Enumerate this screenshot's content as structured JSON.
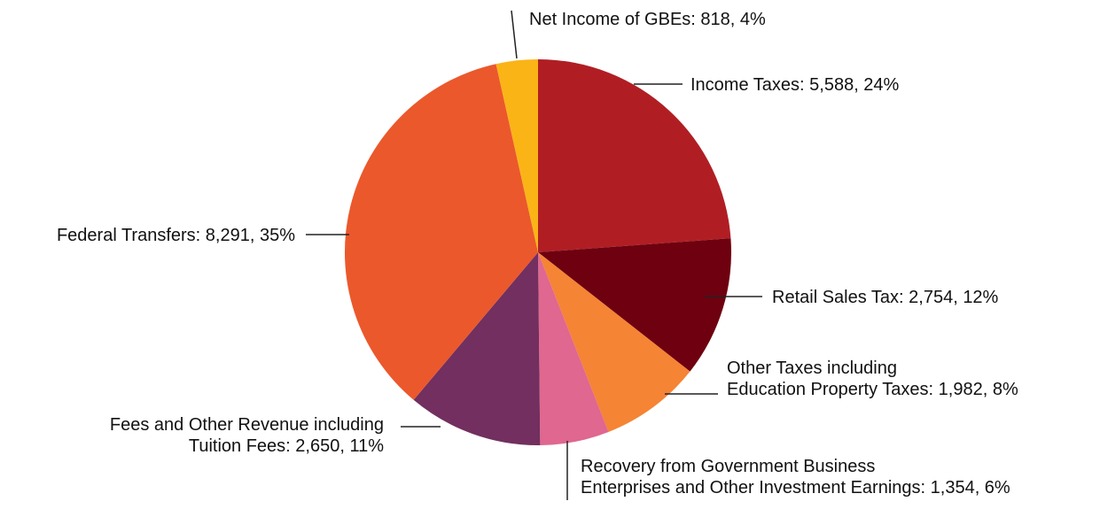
{
  "chart_data": {
    "type": "pie",
    "start_angle_deg": 0,
    "direction": "clockwise",
    "slices": [
      {
        "name": "Income Taxes",
        "value": 5588,
        "percent": 24,
        "color": "#b01e24",
        "label_lines": [
          "Income Taxes: 5,588, 24%"
        ]
      },
      {
        "name": "Retail Sales Tax",
        "value": 2754,
        "percent": 12,
        "color": "#6e0010",
        "label_lines": [
          "Retail Sales Tax: 2,754, 12%"
        ]
      },
      {
        "name": "Other Taxes including Education Property Taxes",
        "value": 1982,
        "percent": 8,
        "color": "#f58434",
        "label_lines": [
          "Other Taxes including",
          "Education Property Taxes: 1,982, 8%"
        ]
      },
      {
        "name": "Recovery from Government Business Enterprises and Other Investment Earnings",
        "value": 1354,
        "percent": 6,
        "color": "#e0678f",
        "label_lines": [
          "Recovery from Government Business",
          "Enterprises and Other Investment Earnings: 1,354, 6%"
        ]
      },
      {
        "name": "Fees and Other Revenue including Tuition Fees",
        "value": 2650,
        "percent": 11,
        "color": "#722f5f",
        "label_lines": [
          "Fees and Other Revenue including",
          "Tuition Fees: 2,650, 11%"
        ]
      },
      {
        "name": "Federal Transfers",
        "value": 8291,
        "percent": 35,
        "color": "#eb582c",
        "label_lines": [
          "Federal Transfers: 8,291, 35%"
        ]
      },
      {
        "name": "Net Income of GBEs",
        "value": 818,
        "percent": 4,
        "color": "#fbb416",
        "label_lines": [
          "Net Income of GBEs: 818, 4%"
        ]
      }
    ]
  }
}
